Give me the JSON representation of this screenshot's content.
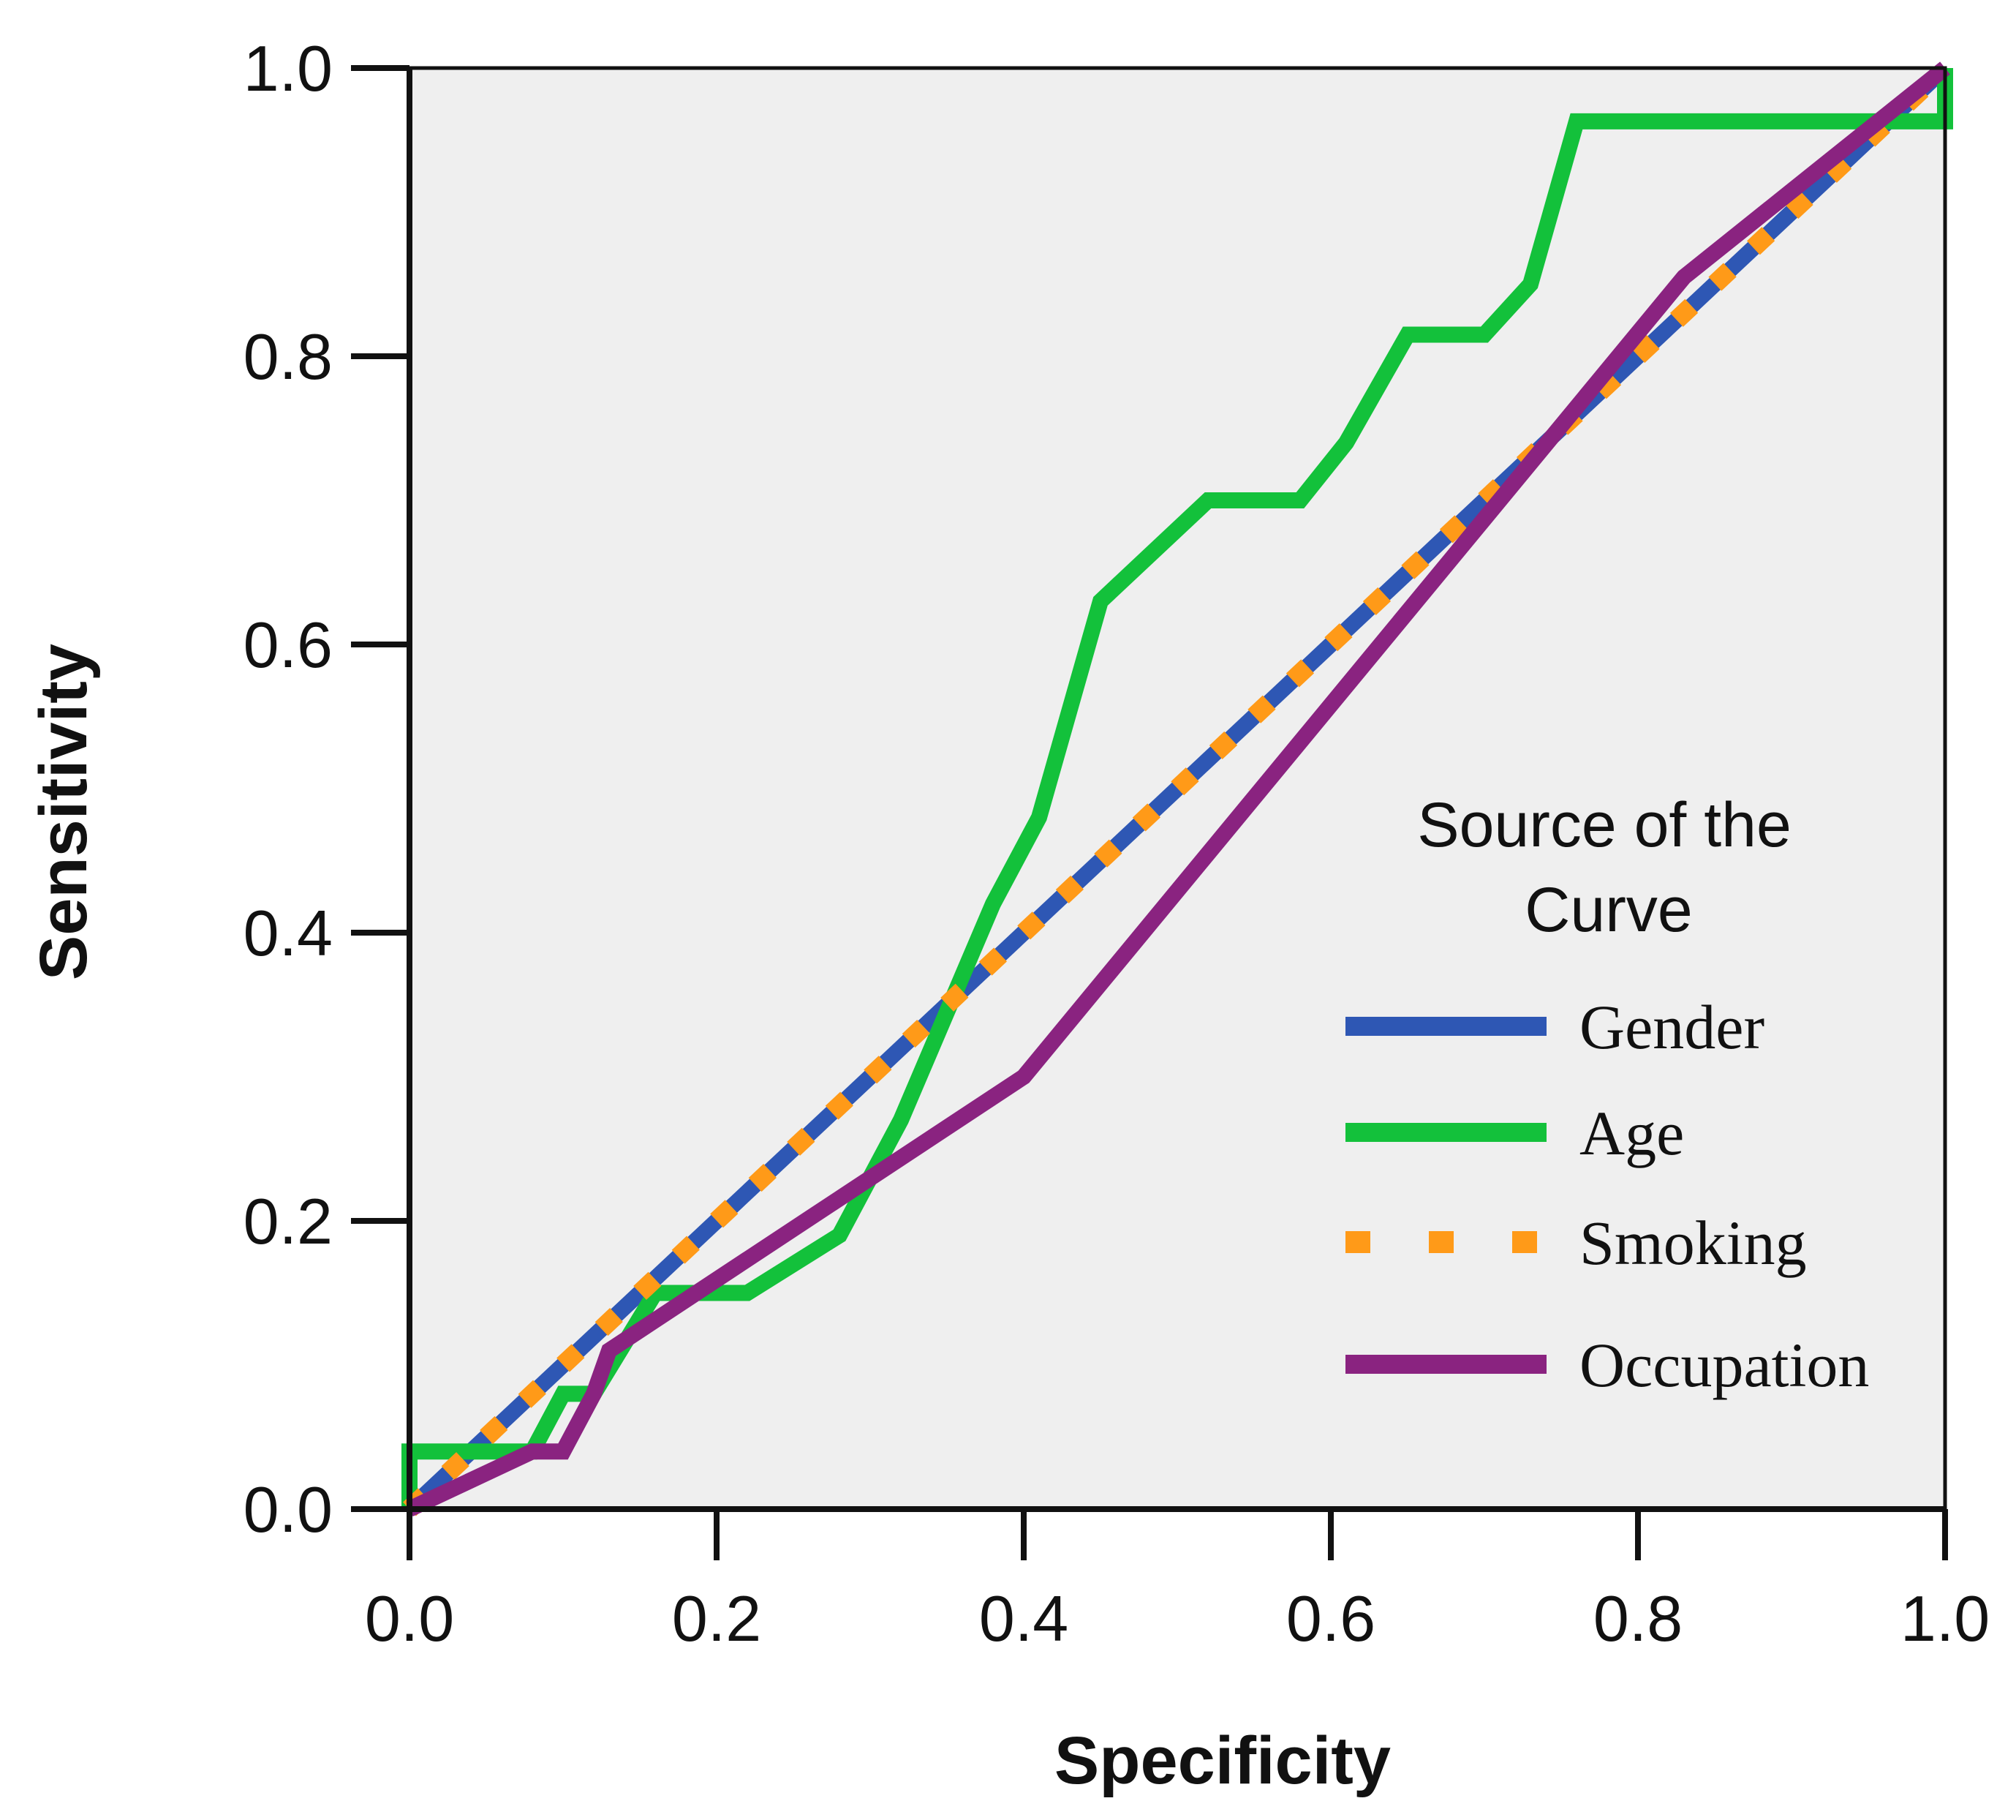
{
  "chart_data": {
    "type": "line",
    "title": "",
    "xlabel": "Specificity",
    "ylabel": "Sensitivity",
    "xlim": [
      0,
      1
    ],
    "ylim": [
      0,
      1
    ],
    "xticks": [
      "0.0",
      "0.2",
      "0.4",
      "0.6",
      "0.8",
      "1.0"
    ],
    "yticks": [
      "0.0",
      "0.2",
      "0.4",
      "0.6",
      "0.8",
      "1.0"
    ],
    "grid": false,
    "background": "#efefef",
    "legend": {
      "title_line1": "Source of the",
      "title_line2": "Curve",
      "position": "bottom-right"
    },
    "series": [
      {
        "name": "Gender",
        "color": "#2e57b4",
        "style": "solid",
        "x": [
          0.0,
          0.5,
          1.0
        ],
        "y": [
          0.0,
          0.5,
          1.0
        ]
      },
      {
        "name": "Age",
        "color": "#13c13b",
        "style": "solid",
        "x": [
          0.0,
          0.0,
          0.08,
          0.1,
          0.12,
          0.16,
          0.18,
          0.22,
          0.28,
          0.32,
          0.38,
          0.41,
          0.45,
          0.52,
          0.58,
          0.61,
          0.65,
          0.7,
          0.73,
          0.76,
          1.0,
          1.0
        ],
        "y": [
          0.0,
          0.04,
          0.04,
          0.08,
          0.08,
          0.15,
          0.15,
          0.15,
          0.19,
          0.27,
          0.42,
          0.48,
          0.63,
          0.7,
          0.7,
          0.74,
          0.815,
          0.815,
          0.85,
          0.963,
          0.963,
          1.0
        ]
      },
      {
        "name": "Smoking",
        "color": "#ff9a18",
        "style": "dotted",
        "x": [
          0.0,
          0.5,
          1.0
        ],
        "y": [
          0.0,
          0.5,
          1.0
        ]
      },
      {
        "name": "Occupation",
        "color": "#8a2380",
        "style": "solid",
        "x": [
          0.0,
          0.08,
          0.1,
          0.12,
          0.13,
          0.4,
          0.83,
          1.0
        ],
        "y": [
          0.0,
          0.04,
          0.04,
          0.08,
          0.11,
          0.3,
          0.855,
          1.0
        ]
      }
    ]
  }
}
